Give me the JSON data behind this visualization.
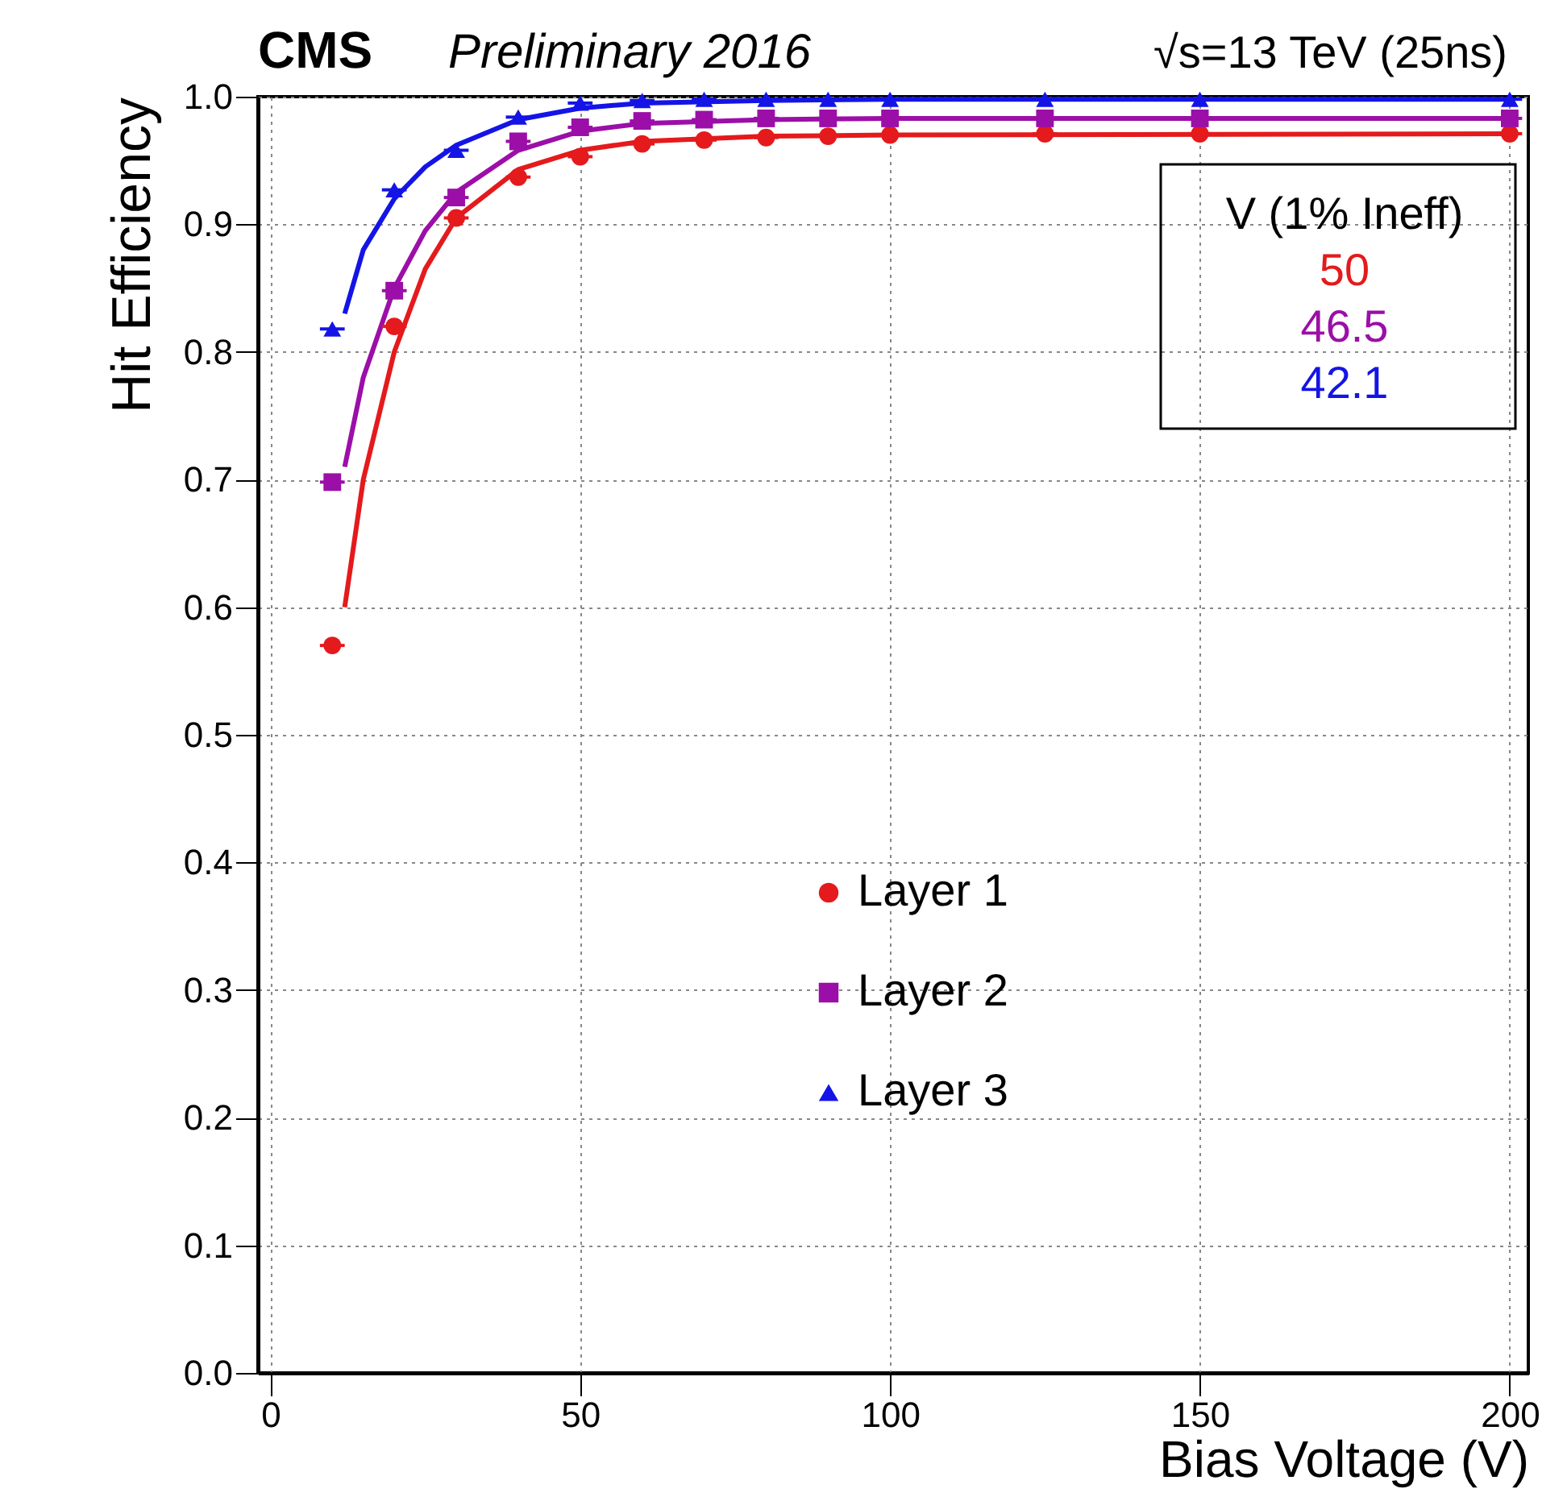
{
  "chart_data": {
    "type": "scatter",
    "xlabel": "Bias Voltage (V)",
    "ylabel": "Hit Efficiency",
    "annotations": [
      "CMS",
      "Preliminary 2016",
      "√s=13 TeV (25ns)",
      "V (1% Ineff)",
      "50",
      "46.5",
      "42.1"
    ],
    "xlim": [
      -2,
      203
    ],
    "xticks": [
      0,
      50,
      100,
      150,
      200
    ],
    "ylim": [
      0,
      1
    ],
    "yticks": [
      {
        "value": 0,
        "label": "0.0"
      },
      {
        "value": 0.1,
        "label": "0.1"
      },
      {
        "value": 0.2,
        "label": "0.2"
      },
      {
        "value": 0.3,
        "label": "0.3"
      },
      {
        "value": 0.4,
        "label": "0.4"
      },
      {
        "value": 0.5,
        "label": "0.5"
      },
      {
        "value": 0.6,
        "label": "0.6"
      },
      {
        "value": 0.7,
        "label": "0.7"
      },
      {
        "value": 0.8,
        "label": "0.8"
      },
      {
        "value": 0.9,
        "label": "0.9"
      },
      {
        "value": 1,
        "label": "1.0"
      }
    ],
    "grid": true,
    "legend": "bottom",
    "series": [
      {
        "name": "Layer 1",
        "marker": "circle",
        "color": "#e41a1c",
        "x": [
          10,
          20,
          30,
          40,
          50,
          60,
          70,
          80,
          90,
          100,
          125,
          150,
          200
        ],
        "values": [
          0.57,
          0.82,
          0.905,
          0.937,
          0.953,
          0.963,
          0.966,
          0.968,
          0.969,
          0.97,
          0.971,
          0.971,
          0.971
        ],
        "xerrors": [
          2,
          2,
          2,
          2,
          2,
          2,
          2,
          2,
          2,
          2,
          2,
          2,
          2
        ]
      },
      {
        "name": "Layer 2",
        "marker": "square",
        "color": "#9b0fa8",
        "x": [
          10,
          20,
          30,
          40,
          50,
          60,
          70,
          80,
          90,
          100,
          125,
          150,
          200
        ],
        "values": [
          0.698,
          0.848,
          0.921,
          0.965,
          0.976,
          0.981,
          0.982,
          0.983,
          0.983,
          0.983,
          0.983,
          0.983,
          0.983
        ],
        "xerrors": [
          2,
          2,
          2,
          2,
          2,
          2,
          2,
          2,
          2,
          2,
          2,
          2,
          2
        ]
      },
      {
        "name": "Layer 3",
        "marker": "triangle",
        "color": "#1414e6",
        "x": [
          10,
          20,
          30,
          40,
          50,
          60,
          70,
          80,
          90,
          100,
          125,
          150,
          200
        ],
        "values": [
          0.818,
          0.927,
          0.958,
          0.984,
          0.995,
          0.997,
          0.998,
          0.998,
          0.998,
          0.998,
          0.998,
          0.998,
          0.998
        ],
        "xerrors": [
          2,
          2,
          2,
          2,
          2,
          2,
          2,
          2,
          2,
          2,
          2,
          2,
          2
        ]
      },
      {
        "type": "line",
        "color": "#e41a1c",
        "x": [
          12,
          15,
          20,
          25,
          30,
          40,
          50,
          60,
          80,
          100,
          200
        ],
        "values": [
          0.6,
          0.7,
          0.8,
          0.865,
          0.905,
          0.943,
          0.958,
          0.965,
          0.969,
          0.97,
          0.971
        ]
      },
      {
        "type": "line",
        "color": "#9b0fa8",
        "x": [
          12,
          15,
          20,
          25,
          30,
          40,
          50,
          60,
          80,
          100,
          200
        ],
        "values": [
          0.71,
          0.78,
          0.85,
          0.895,
          0.925,
          0.958,
          0.973,
          0.979,
          0.982,
          0.983,
          0.983
        ]
      },
      {
        "type": "line",
        "color": "#1414e6",
        "x": [
          12,
          15,
          20,
          25,
          30,
          40,
          50,
          60,
          80,
          100,
          200
        ],
        "values": [
          0.83,
          0.88,
          0.92,
          0.945,
          0.962,
          0.982,
          0.991,
          0.995,
          0.997,
          0.998,
          0.998
        ]
      }
    ]
  }
}
